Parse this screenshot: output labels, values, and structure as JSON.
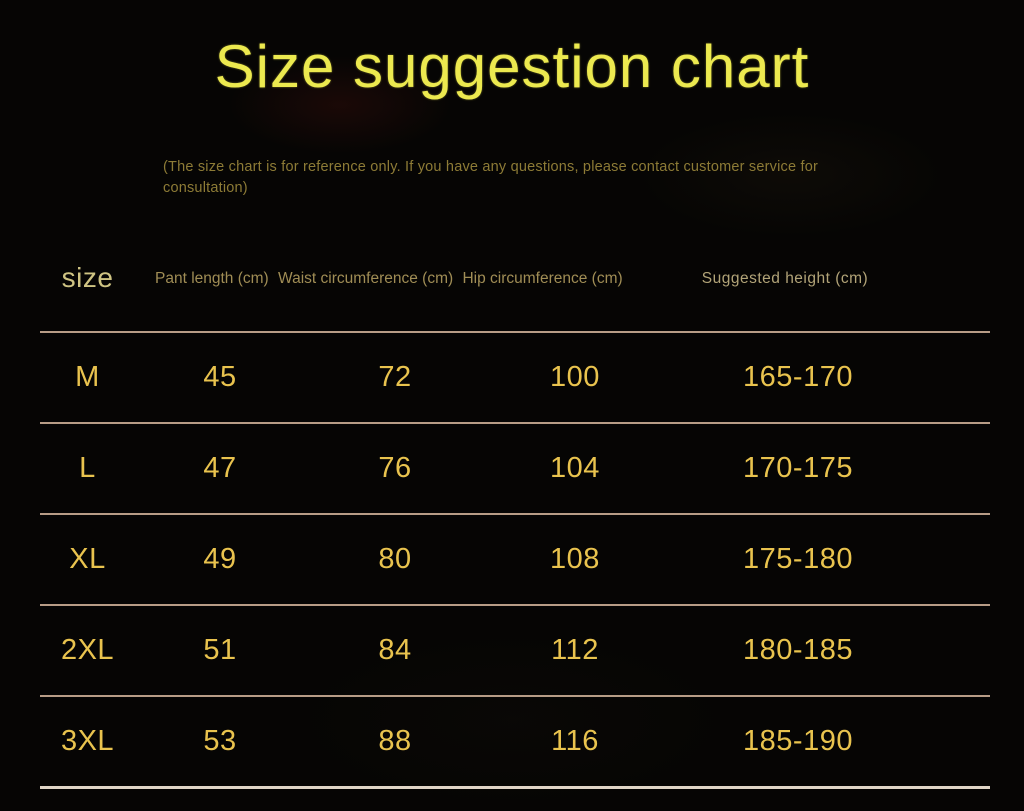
{
  "title": "Size suggestion chart",
  "note": "(The size chart is for reference only. If you have any questions, please contact customer service for consultation)",
  "colors": {
    "background": "#060504",
    "title_text": "#ECE94F",
    "note_text": "#8D7B36",
    "column_header_text": "#A08D55",
    "size_header_text": "#CFC483",
    "data_text": "#E9C34E",
    "row_line": "#B79C86",
    "bottom_line": "#E0D5C7"
  },
  "chart_data": {
    "type": "table",
    "title": "Size suggestion chart",
    "columns": [
      "size",
      "Pant length (cm)",
      "Waist circumference (cm)",
      "Hip circumference (cm)",
      "Suggested height (cm)"
    ],
    "rows": [
      [
        "M",
        "45",
        "72",
        "100",
        "165-170"
      ],
      [
        "L",
        "47",
        "76",
        "104",
        "170-175"
      ],
      [
        "XL",
        "49",
        "80",
        "108",
        "175-180"
      ],
      [
        "2XL",
        "51",
        "84",
        "112",
        "180-185"
      ],
      [
        "3XL",
        "53",
        "88",
        "116",
        "185-190"
      ]
    ],
    "layout": {
      "grid": "horizontal row separators only",
      "legend": "none"
    }
  }
}
